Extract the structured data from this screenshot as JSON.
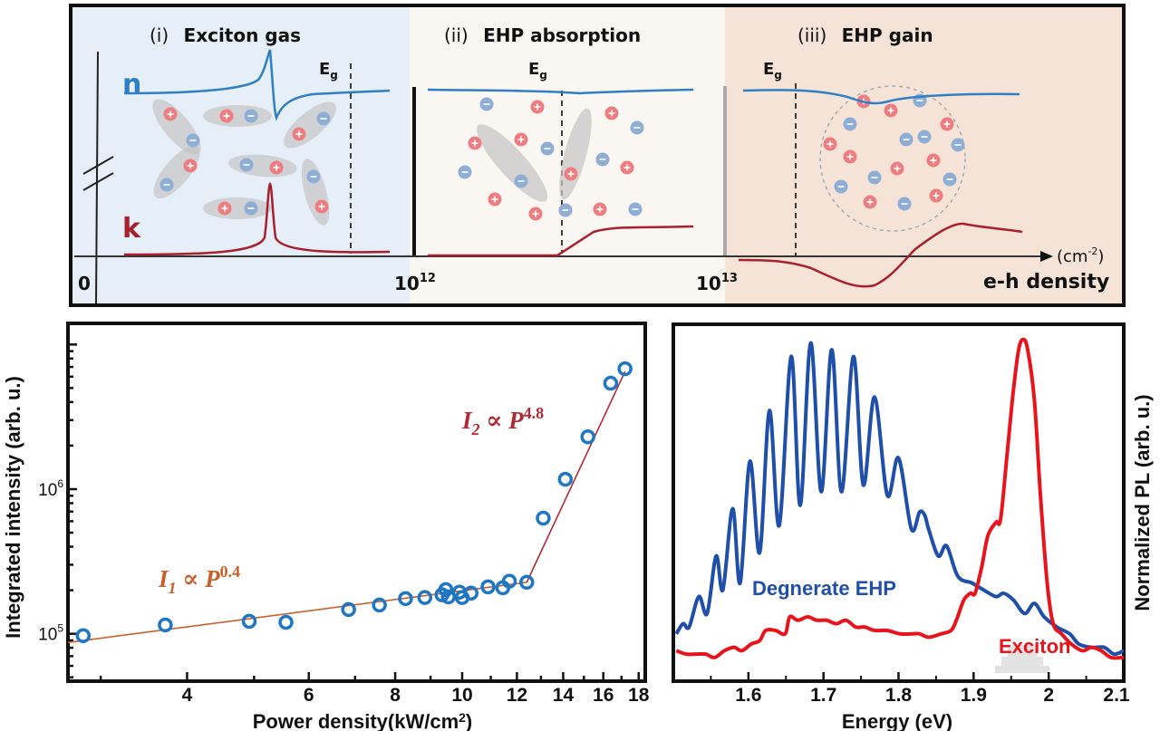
{
  "diagram": {
    "panels": [
      {
        "label": "(i)",
        "title": "Exciton gas",
        "background": "#e6eef8"
      },
      {
        "label": "(ii)",
        "title": "EHP absorption",
        "background": "#faf6f1"
      },
      {
        "label": "(iii)",
        "title": "EHP gain",
        "background": "#f4e3d6"
      }
    ],
    "n_label": "n",
    "k_label": "k",
    "eg_label": "E",
    "eg_sub": "g",
    "origin_label": "0",
    "tick_1": {
      "base": "10",
      "exp": "12"
    },
    "tick_2": {
      "base": "10",
      "exp": "13"
    },
    "axis_label": "e-h density",
    "unit": {
      "open": "(cm",
      "exp": "-2",
      "close": ")"
    },
    "colors": {
      "n": "#2f7fc4",
      "k": "#a8202e",
      "electron": "#8eaed6",
      "hole": "#ee7d80",
      "exciton_cloud": "#c4c4c4"
    }
  },
  "chart_data": [
    {
      "type": "scatter",
      "xlabel": "Power density(kW/cm",
      "xlabel_exp": "2",
      "xlabel_close": ")",
      "ylabel": "Integrated intensity (arb. u.)",
      "xscale": "log",
      "yscale": "log",
      "xlim": [
        2.69,
        18.4
      ],
      "ylim": [
        47000,
        14000000
      ],
      "xticks": [
        4,
        6,
        8,
        10,
        12,
        14,
        16,
        18
      ],
      "yticks": [
        {
          "value": 100000,
          "base": "10",
          "exp": "5"
        },
        {
          "value": 1000000,
          "base": "10",
          "exp": "6"
        }
      ],
      "marker_color": "#1f77c4",
      "points": [
        [
          2.83,
          97000
        ],
        [
          3.72,
          115000
        ],
        [
          4.92,
          122000
        ],
        [
          5.56,
          120000
        ],
        [
          6.85,
          147000
        ],
        [
          7.59,
          158000
        ],
        [
          8.28,
          175000
        ],
        [
          8.83,
          178000
        ],
        [
          9.35,
          186000
        ],
        [
          9.47,
          202000
        ],
        [
          9.55,
          180000
        ],
        [
          9.91,
          194000
        ],
        [
          10.0,
          178000
        ],
        [
          10.3,
          191000
        ],
        [
          10.9,
          211000
        ],
        [
          11.45,
          208000
        ],
        [
          11.7,
          231000
        ],
        [
          12.4,
          227000
        ],
        [
          13.1,
          630000
        ],
        [
          14.1,
          1170000
        ],
        [
          15.2,
          2300000
        ],
        [
          16.4,
          5400000
        ],
        [
          17.2,
          6800000
        ]
      ],
      "fits": [
        {
          "label_base": "I",
          "label_sub": "1",
          "label_mid": " ∝ P",
          "label_exp": "0.4",
          "color": "#c8602c",
          "exponent": 0.4,
          "from": [
            2.69,
            87000
          ],
          "to": [
            12.4,
            227000
          ]
        },
        {
          "label_base": "I",
          "label_sub": "2",
          "label_mid": " ∝ P",
          "label_exp": "4.8",
          "color": "#b02a33",
          "exponent": 4.8,
          "from": [
            12.4,
            227000
          ],
          "to": [
            17.2,
            6500000
          ]
        }
      ]
    },
    {
      "type": "line",
      "xlabel": "Energy (eV)",
      "ylabel": "Normalized PL (arb. u.)",
      "xlim": [
        1.5,
        2.1
      ],
      "ylim": [
        0,
        1.055
      ],
      "xticks": [
        "1.6",
        "1.7",
        "1.8",
        "1.9",
        "2",
        "2.1"
      ],
      "yticks": [],
      "series": [
        {
          "name": "Degnerate EHP",
          "color": "#1f4fa8",
          "x": [
            1.504,
            1.513,
            1.521,
            1.534,
            1.545,
            1.557,
            1.566,
            1.579,
            1.589,
            1.602,
            1.615,
            1.628,
            1.641,
            1.657,
            1.669,
            1.683,
            1.697,
            1.711,
            1.724,
            1.74,
            1.753,
            1.768,
            1.785,
            1.8,
            1.817,
            1.828,
            1.835,
            1.84,
            1.853,
            1.864,
            1.879,
            1.898,
            1.913,
            1.93,
            1.94,
            1.953,
            1.968,
            1.981,
            1.994,
            2.011,
            2.028,
            2.04,
            2.057,
            2.074,
            2.087,
            2.1
          ],
          "y": [
            0.14,
            0.17,
            0.16,
            0.25,
            0.2,
            0.37,
            0.27,
            0.51,
            0.29,
            0.65,
            0.38,
            0.8,
            0.46,
            0.96,
            0.52,
            1.0,
            0.56,
            0.98,
            0.56,
            0.96,
            0.58,
            0.84,
            0.55,
            0.66,
            0.45,
            0.5,
            0.49,
            0.45,
            0.37,
            0.4,
            0.31,
            0.29,
            0.27,
            0.25,
            0.26,
            0.24,
            0.2,
            0.23,
            0.19,
            0.16,
            0.14,
            0.11,
            0.1,
            0.1,
            0.08,
            0.09
          ]
        },
        {
          "name": "Exciton",
          "color": "#e8141c",
          "x": [
            1.504,
            1.517,
            1.53,
            1.543,
            1.555,
            1.568,
            1.581,
            1.591,
            1.604,
            1.615,
            1.623,
            1.636,
            1.649,
            1.655,
            1.666,
            1.679,
            1.691,
            1.704,
            1.717,
            1.73,
            1.743,
            1.755,
            1.768,
            1.785,
            1.802,
            1.819,
            1.828,
            1.84,
            1.857,
            1.87,
            1.877,
            1.887,
            1.896,
            1.902,
            1.911,
            1.919,
            1.93,
            1.936,
            1.945,
            1.953,
            1.96,
            1.966,
            1.972,
            1.981,
            1.989,
            1.998,
            2.006,
            2.017,
            2.03,
            2.045,
            2.057,
            2.07,
            2.083,
            2.1
          ],
          "y": [
            0.09,
            0.08,
            0.08,
            0.08,
            0.07,
            0.09,
            0.1,
            0.09,
            0.11,
            0.12,
            0.15,
            0.15,
            0.14,
            0.19,
            0.18,
            0.19,
            0.18,
            0.18,
            0.17,
            0.18,
            0.16,
            0.16,
            0.15,
            0.15,
            0.14,
            0.14,
            0.14,
            0.13,
            0.14,
            0.15,
            0.18,
            0.24,
            0.26,
            0.26,
            0.34,
            0.43,
            0.47,
            0.48,
            0.68,
            0.86,
            0.98,
            1.01,
            0.98,
            0.83,
            0.55,
            0.29,
            0.17,
            0.14,
            0.11,
            0.09,
            0.1,
            0.09,
            0.07,
            0.07
          ]
        }
      ]
    }
  ]
}
